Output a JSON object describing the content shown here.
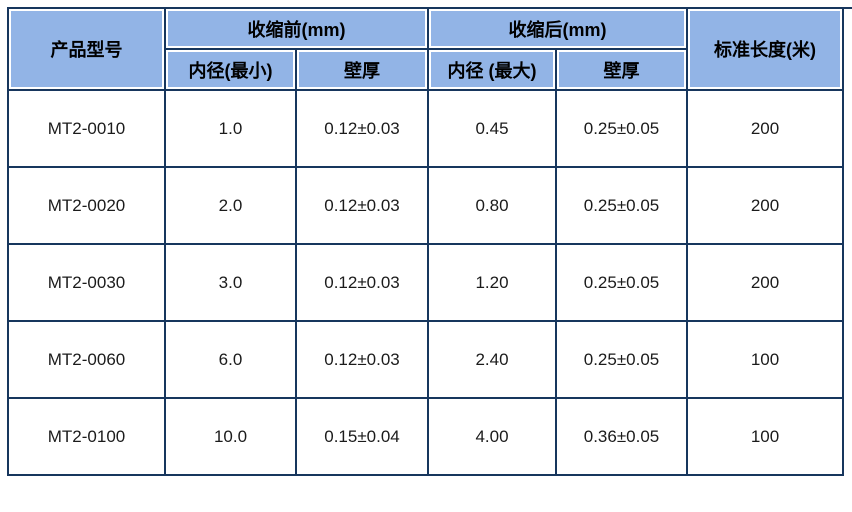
{
  "colors": {
    "grid_navy": "#17365d",
    "header_blue": "#92b4e6",
    "cell_white": "#ffffff",
    "header_text": "#000000",
    "body_text": "#1b1b1b",
    "page_bg": "#ffffff"
  },
  "table": {
    "headers": {
      "product_model": "产品型号",
      "before_group": "收缩前(mm)",
      "after_group": "收缩后(mm)",
      "standard_length": "标准长度(米)",
      "before_inner_diameter": "内径(最小)",
      "before_wall": "壁厚",
      "after_inner_diameter": "内径 (最大)",
      "after_wall": "壁厚"
    },
    "rows": [
      {
        "model": "MT2-0010",
        "before_id": "1.0",
        "before_wall": "0.12±0.03",
        "after_id": "0.45",
        "after_wall": "0.25±0.05",
        "length": "200"
      },
      {
        "model": "MT2-0020",
        "before_id": "2.0",
        "before_wall": "0.12±0.03",
        "after_id": "0.80",
        "after_wall": "0.25±0.05",
        "length": "200"
      },
      {
        "model": "MT2-0030",
        "before_id": "3.0",
        "before_wall": "0.12±0.03",
        "after_id": "1.20",
        "after_wall": "0.25±0.05",
        "length": "200"
      },
      {
        "model": "MT2-0060",
        "before_id": "6.0",
        "before_wall": "0.12±0.03",
        "after_id": "2.40",
        "after_wall": "0.25±0.05",
        "length": "100"
      },
      {
        "model": "MT2-0100",
        "before_id": "10.0",
        "before_wall": "0.15±0.04",
        "after_id": "4.00",
        "after_wall": "0.36±0.05",
        "length": "100"
      }
    ]
  }
}
